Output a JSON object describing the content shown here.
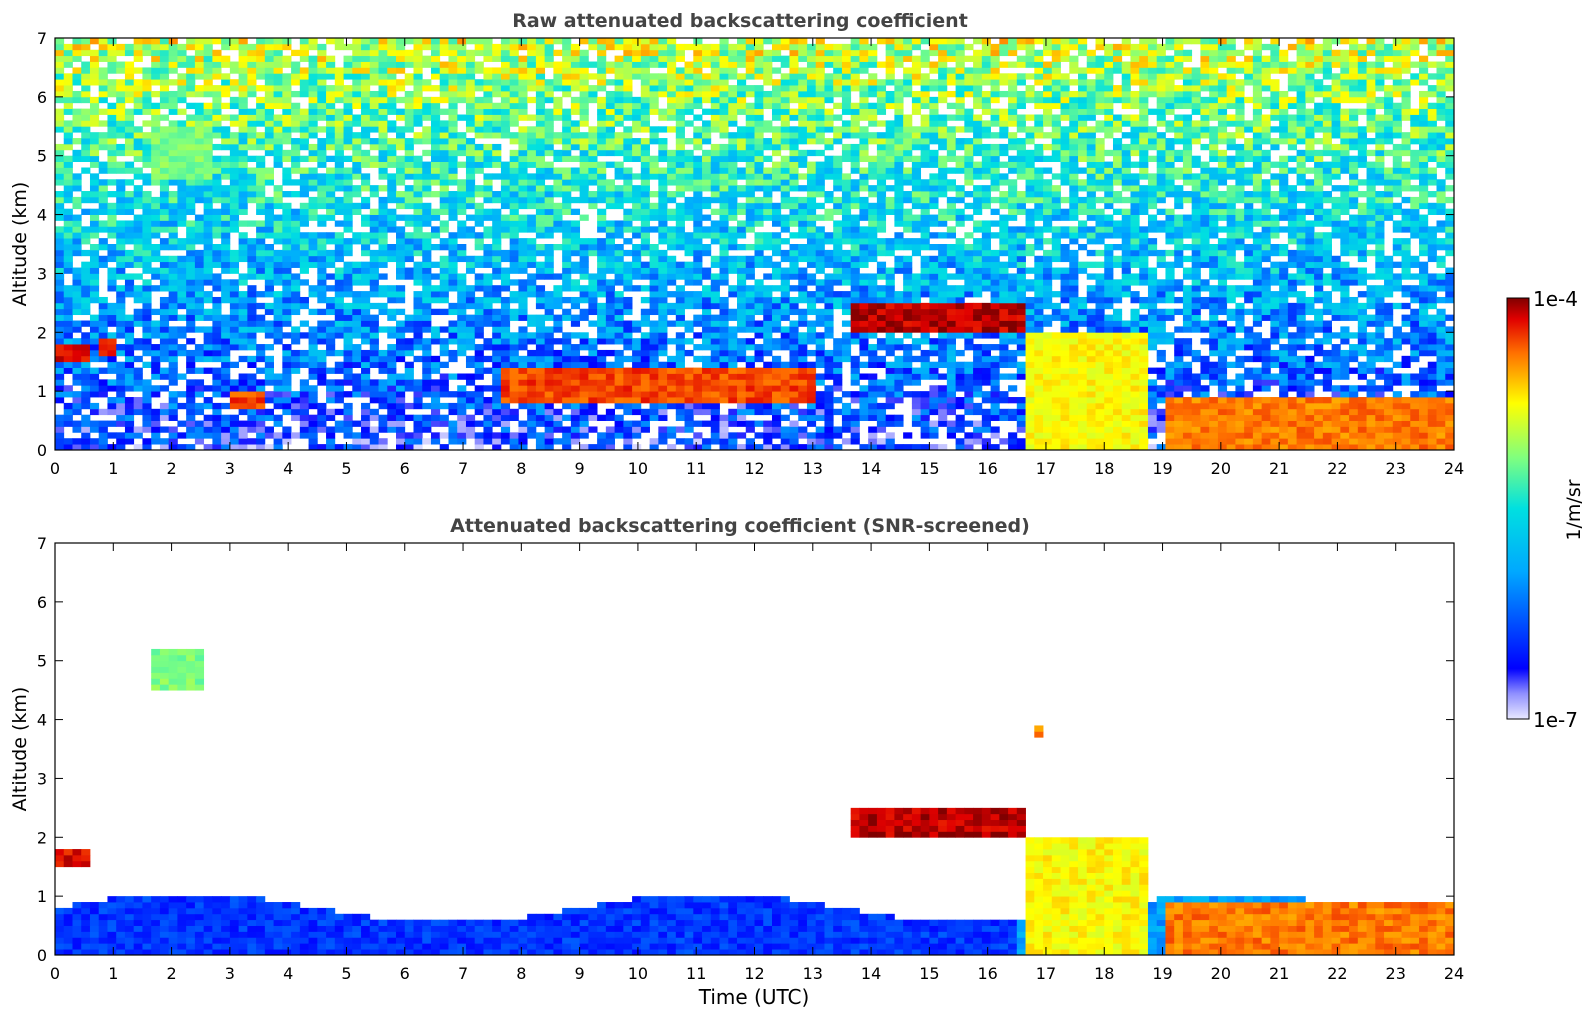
{
  "chart_data": [
    {
      "type": "heatmap",
      "title": "Raw attenuated backscattering coefficient",
      "ylabel": "Altitude (km)",
      "xlabel": "",
      "xlim": [
        0,
        24
      ],
      "ylim": [
        0,
        7
      ],
      "xticks": [
        "0",
        "1",
        "2",
        "3",
        "4",
        "5",
        "6",
        "7",
        "8",
        "9",
        "10",
        "11",
        "12",
        "13",
        "14",
        "15",
        "16",
        "17",
        "18",
        "19",
        "20",
        "21",
        "22",
        "23",
        "24"
      ],
      "yticks": [
        "0",
        "1",
        "2",
        "3",
        "4",
        "5",
        "6",
        "7"
      ],
      "noise": true,
      "features": [
        {
          "name": "early-cloud",
          "t0": 0.0,
          "t1": 0.55,
          "z0": 1.5,
          "z1": 1.8,
          "level": 0.95
        },
        {
          "name": "early-cloud-2",
          "t0": 0.7,
          "t1": 1.1,
          "z0": 1.6,
          "z1": 1.85,
          "level": 0.92
        },
        {
          "name": "aerosol-plume",
          "t0": 1.6,
          "t1": 2.7,
          "z0": 4.6,
          "z1": 5.5,
          "level": 0.62
        },
        {
          "name": "cloud-layer-1",
          "t0": 3.0,
          "t1": 3.6,
          "z0": 0.75,
          "z1": 1.0,
          "level": 0.9
        },
        {
          "name": "cloud-layer-2",
          "t0": 7.6,
          "t1": 13.1,
          "z0": 0.8,
          "z1": 1.35,
          "level": 0.9
        },
        {
          "name": "elevated-cloud",
          "t0": 13.7,
          "t1": 16.6,
          "z0": 2.0,
          "z1": 2.45,
          "level": 0.97
        },
        {
          "name": "convective-1",
          "t0": 16.7,
          "t1": 18.8,
          "z0": 0.0,
          "z1": 2.0,
          "level": 0.75
        },
        {
          "name": "boundary-layer-haze",
          "t0": 19.0,
          "t1": 24.0,
          "z0": 0.0,
          "z1": 0.9,
          "level": 0.86
        }
      ]
    },
    {
      "type": "heatmap",
      "title": "Attenuated backscattering coefficient (SNR-screened)",
      "ylabel": "Altitude (km)",
      "xlabel": "Time (UTC)",
      "xlim": [
        0,
        24
      ],
      "ylim": [
        0,
        7
      ],
      "xticks": [
        "0",
        "1",
        "2",
        "3",
        "4",
        "5",
        "6",
        "7",
        "8",
        "9",
        "10",
        "11",
        "12",
        "13",
        "14",
        "15",
        "16",
        "17",
        "18",
        "19",
        "20",
        "21",
        "22",
        "23",
        "24"
      ],
      "yticks": [
        "0",
        "1",
        "2",
        "3",
        "4",
        "5",
        "6",
        "7"
      ],
      "noise": false,
      "features": [
        {
          "name": "early-cloud",
          "t0": 0.0,
          "t1": 0.55,
          "z0": 1.5,
          "z1": 1.8,
          "level": 0.95
        },
        {
          "name": "aerosol-plume",
          "t0": 1.7,
          "t1": 2.6,
          "z0": 4.5,
          "z1": 5.2,
          "level": 0.62
        },
        {
          "name": "elevated-cloud",
          "t0": 13.7,
          "t1": 16.6,
          "z0": 2.0,
          "z1": 2.45,
          "level": 0.97
        },
        {
          "name": "small-cloud",
          "t0": 16.8,
          "t1": 16.95,
          "z0": 3.7,
          "z1": 3.9,
          "level": 0.85
        },
        {
          "name": "convective-1",
          "t0": 16.7,
          "t1": 18.8,
          "z0": 0.0,
          "z1": 2.0,
          "level": 0.75
        },
        {
          "name": "boundary-layer-haze",
          "t0": 19.0,
          "t1": 24.0,
          "z0": 0.0,
          "z1": 0.9,
          "level": 0.86
        }
      ]
    }
  ],
  "colorbar": {
    "label": "1/m/sr",
    "max_label": "1e-4",
    "min_label": "1e-7",
    "min": 1e-07,
    "max": 0.0001,
    "scale": "log",
    "colormap": "jet"
  }
}
